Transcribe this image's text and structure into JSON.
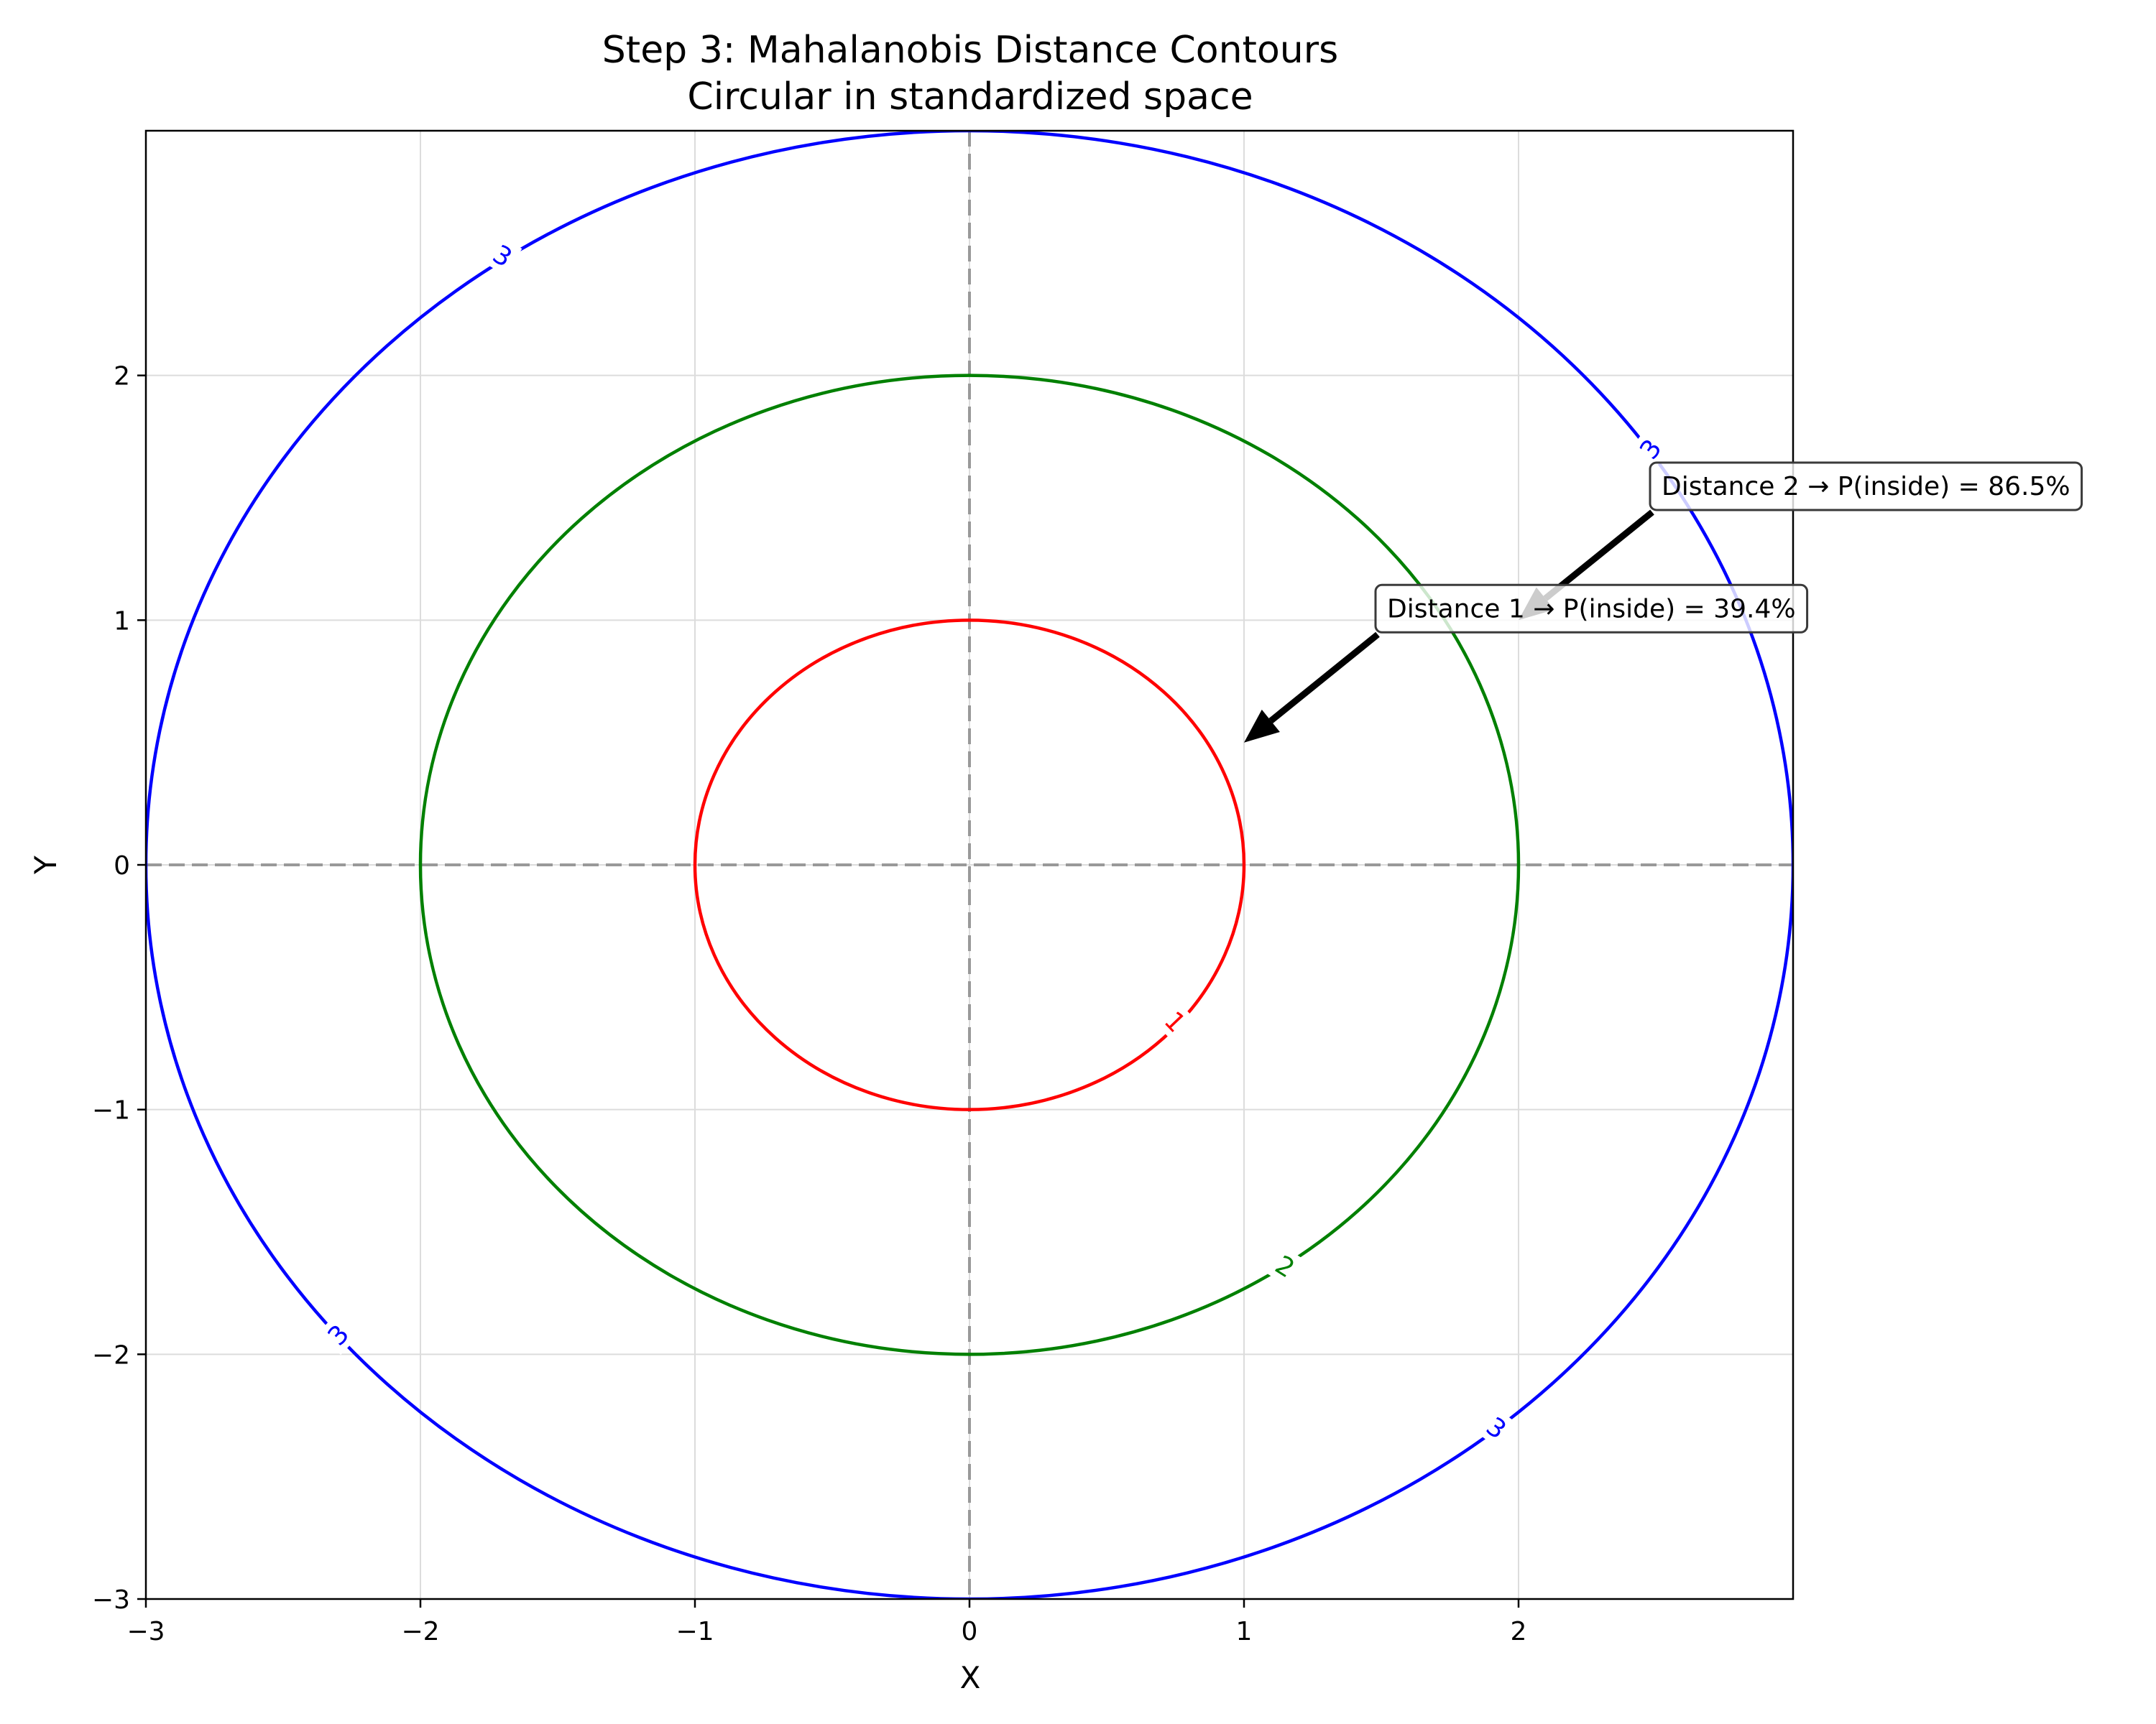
{
  "chart_data": {
    "type": "contour",
    "title": "Step 3: Mahalanobis Distance Contours",
    "subtitle": "Circular in standardized space",
    "xlabel": "X",
    "ylabel": "Y",
    "xlim": [
      -3,
      3
    ],
    "ylim": [
      -3,
      3
    ],
    "xticks": [
      {
        "value": -3,
        "label": "−3"
      },
      {
        "value": -2,
        "label": "−2"
      },
      {
        "value": -1,
        "label": "−1"
      },
      {
        "value": 0,
        "label": "0"
      },
      {
        "value": 1,
        "label": "1"
      },
      {
        "value": 2,
        "label": "2"
      }
    ],
    "yticks": [
      {
        "value": -3,
        "label": "−3"
      },
      {
        "value": -2,
        "label": "−2"
      },
      {
        "value": -1,
        "label": "−1"
      },
      {
        "value": 0,
        "label": "0"
      },
      {
        "value": 1,
        "label": "1"
      },
      {
        "value": 2,
        "label": "2"
      }
    ],
    "grid": true,
    "reference_lines": {
      "x": 0,
      "y": 0,
      "style": "dashed",
      "color": "#999999"
    },
    "contours": [
      {
        "level": 1,
        "label": "1",
        "color": "#ff0000",
        "label_positions": [
          {
            "x": 0.75,
            "y": -0.64
          }
        ]
      },
      {
        "level": 2,
        "label": "2",
        "color": "#008000",
        "label_positions": [
          {
            "x": 1.15,
            "y": -1.64
          }
        ]
      },
      {
        "level": 3,
        "label": "3",
        "color": "#0000ff",
        "label_positions": [
          {
            "x": -1.7,
            "y": 2.49
          },
          {
            "x": 2.48,
            "y": 1.7
          },
          {
            "x": -2.3,
            "y": -1.92
          },
          {
            "x": 1.92,
            "y": -2.3
          }
        ]
      }
    ],
    "annotations": [
      {
        "text": "Distance 2 → P(inside) = 86.5%",
        "text_pos": {
          "x": 2.5,
          "y": 1.55
        },
        "arrow_tip": {
          "x": 2.0,
          "y": 1.0
        }
      },
      {
        "text": "Distance 1 → P(inside) = 39.4%",
        "text_pos": {
          "x": 1.5,
          "y": 1.05
        },
        "arrow_tip": {
          "x": 1.0,
          "y": 0.5
        }
      }
    ]
  }
}
